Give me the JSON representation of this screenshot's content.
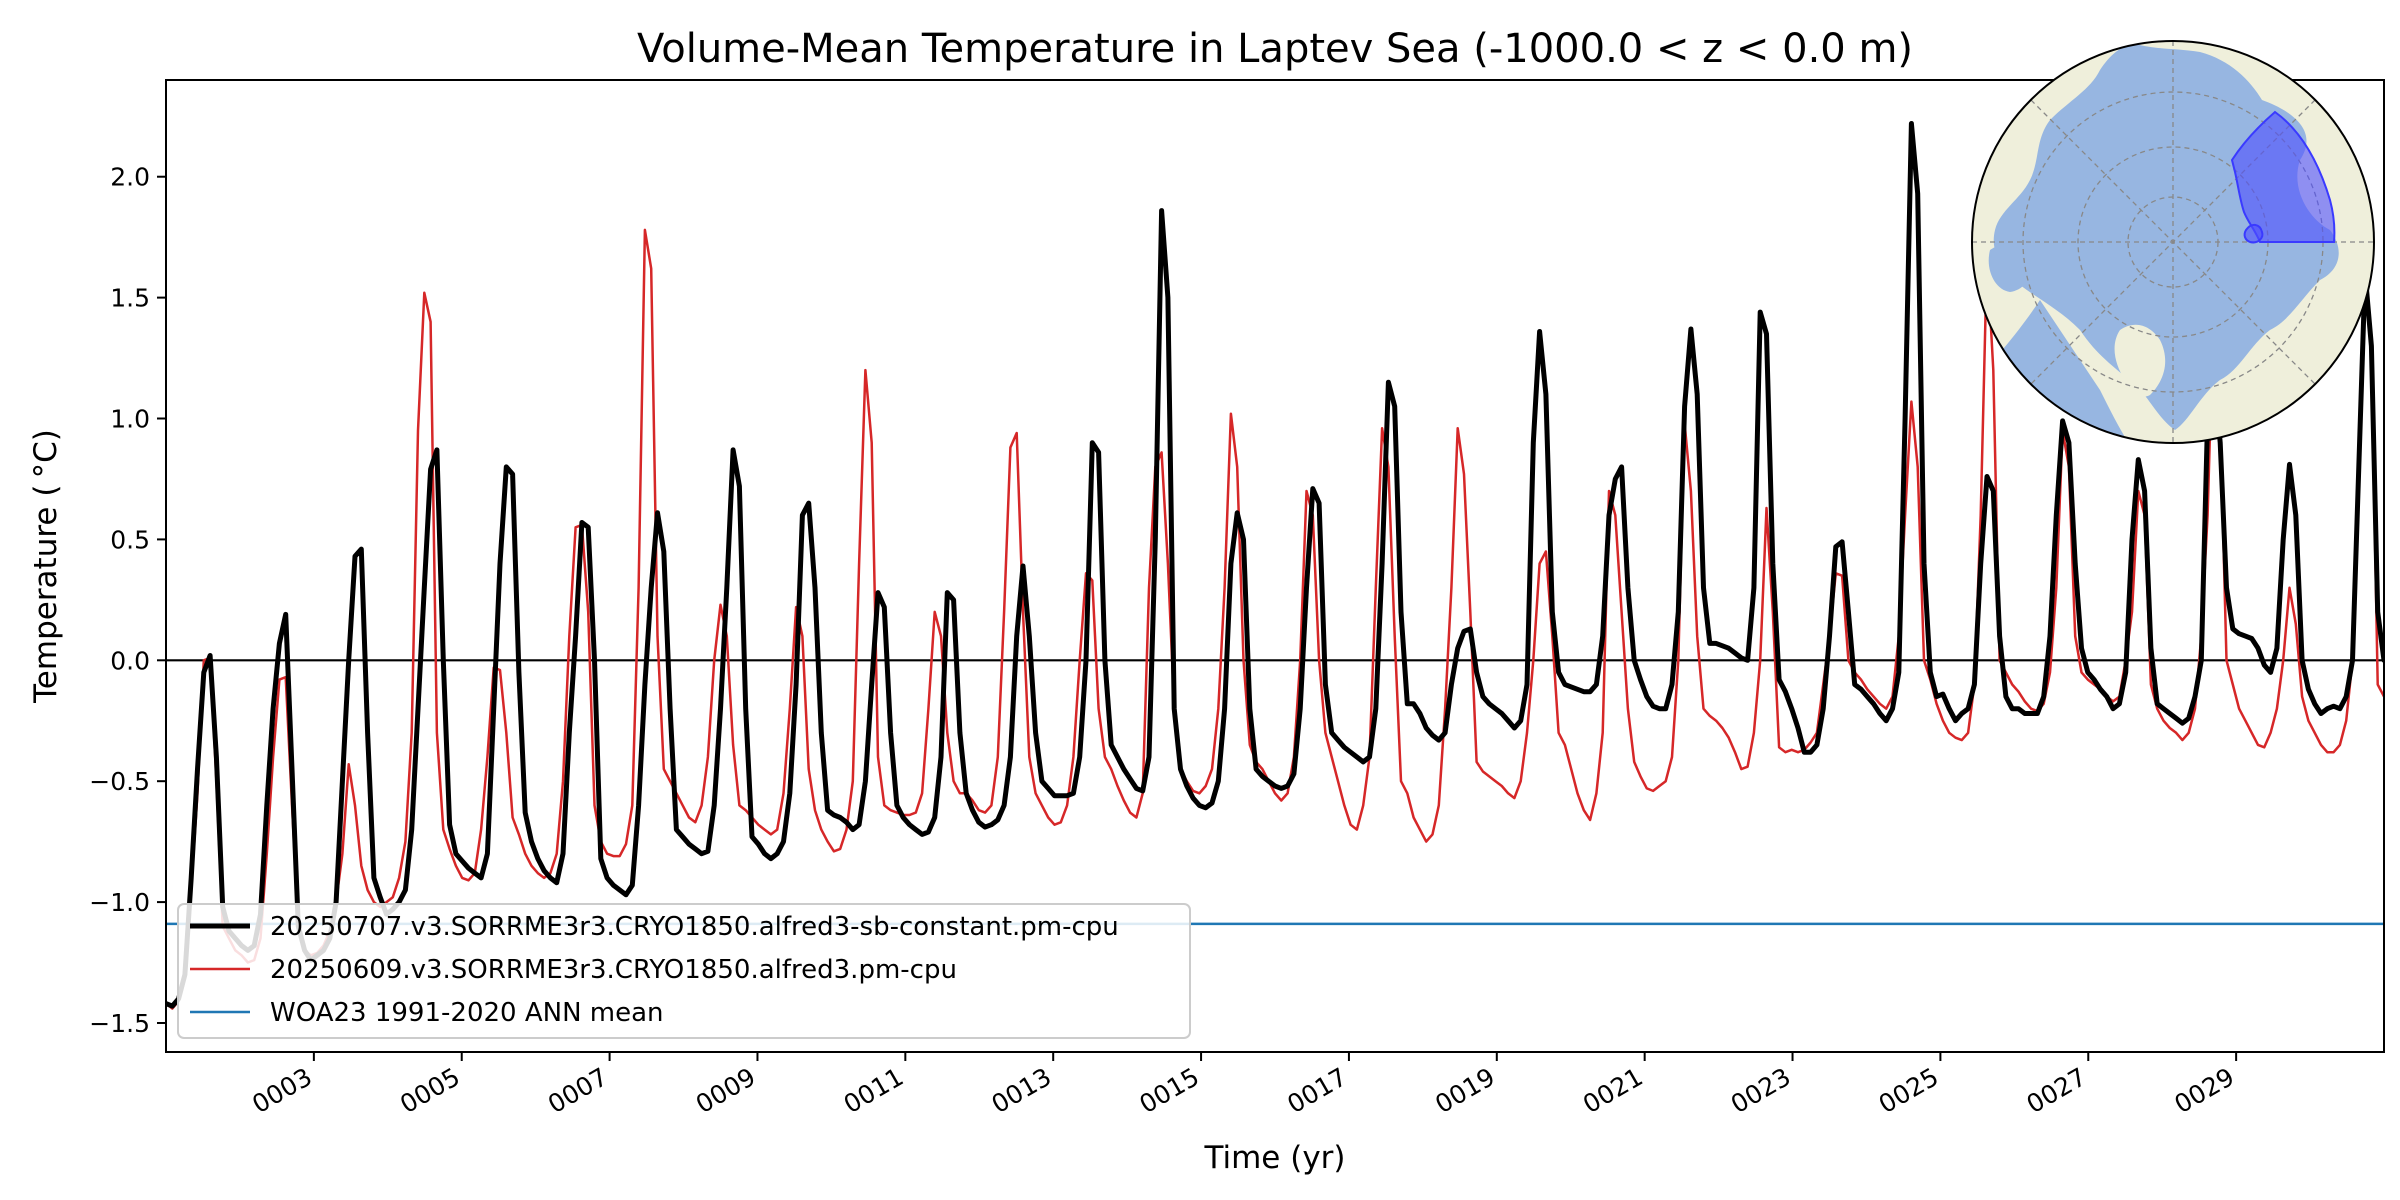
{
  "chart_data": {
    "type": "line",
    "title": "Volume-Mean Temperature in Laptev Sea (-1000.0 < z < 0.0 m)",
    "xlabel": "Time (yr)",
    "ylabel": "Temperature ( °C)",
    "xlim": [
      1.0,
      31.0
    ],
    "ylim": [
      -1.62,
      2.4
    ],
    "yticks": [
      -1.5,
      -1.0,
      -0.5,
      0.0,
      0.5,
      1.0,
      1.5,
      2.0
    ],
    "ytick_labels": [
      "−1.5",
      "−1.0",
      "−0.5",
      "0.0",
      "0.5",
      "1.0",
      "1.5",
      "2.0"
    ],
    "xticks": [
      3,
      5,
      7,
      9,
      11,
      13,
      15,
      17,
      19,
      21,
      23,
      25,
      27,
      29
    ],
    "xtick_labels": [
      "0003",
      "0005",
      "0007",
      "0009",
      "0011",
      "0013",
      "0015",
      "0017",
      "0019",
      "0021",
      "0023",
      "0025",
      "0027",
      "0029"
    ],
    "grid": false,
    "legend_position": "lower-left",
    "zero_line": 0.0,
    "series": [
      {
        "name": "20250707.v3.SORRME3r3.CRYO1850.alfred3-sb-constant.pm-cpu",
        "color": "#000000",
        "style": "thick",
        "y": [
          -1.42,
          -1.43,
          -1.4,
          -1.3,
          -0.9,
          -0.45,
          -0.05,
          0.02,
          -0.4,
          -1.02,
          -1.12,
          -1.15,
          -1.18,
          -1.2,
          -1.18,
          -1.05,
          -0.6,
          -0.2,
          0.07,
          0.19,
          -0.45,
          -1.1,
          -1.2,
          -1.24,
          -1.22,
          -1.2,
          -1.15,
          -1.0,
          -0.5,
          0.0,
          0.43,
          0.46,
          -0.3,
          -0.9,
          -0.98,
          -1.05,
          -1.03,
          -1.0,
          -0.95,
          -0.7,
          -0.2,
          0.3,
          0.79,
          0.87,
          0.0,
          -0.68,
          -0.8,
          -0.83,
          -0.86,
          -0.88,
          -0.9,
          -0.8,
          -0.2,
          0.4,
          0.8,
          0.77,
          -0.05,
          -0.63,
          -0.75,
          -0.82,
          -0.87,
          -0.9,
          -0.92,
          -0.8,
          -0.3,
          0.1,
          0.57,
          0.55,
          0.0,
          -0.82,
          -0.9,
          -0.93,
          -0.95,
          -0.97,
          -0.93,
          -0.6,
          -0.1,
          0.3,
          0.61,
          0.45,
          -0.2,
          -0.7,
          -0.73,
          -0.76,
          -0.78,
          -0.8,
          -0.79,
          -0.6,
          -0.2,
          0.3,
          0.87,
          0.72,
          -0.2,
          -0.73,
          -0.76,
          -0.8,
          -0.82,
          -0.8,
          -0.75,
          -0.55,
          -0.1,
          0.6,
          0.65,
          0.3,
          -0.3,
          -0.62,
          -0.64,
          -0.65,
          -0.67,
          -0.7,
          -0.68,
          -0.5,
          -0.1,
          0.28,
          0.22,
          -0.3,
          -0.6,
          -0.65,
          -0.68,
          -0.7,
          -0.72,
          -0.71,
          -0.65,
          -0.4,
          0.28,
          0.25,
          -0.3,
          -0.55,
          -0.62,
          -0.67,
          -0.69,
          -0.68,
          -0.66,
          -0.6,
          -0.4,
          0.1,
          0.39,
          0.1,
          -0.3,
          -0.5,
          -0.53,
          -0.56,
          -0.56,
          -0.56,
          -0.55,
          -0.4,
          0.0,
          0.9,
          0.86,
          0.0,
          -0.35,
          -0.4,
          -0.45,
          -0.49,
          -0.53,
          -0.54,
          -0.4,
          0.5,
          1.86,
          1.5,
          -0.2,
          -0.45,
          -0.52,
          -0.57,
          -0.6,
          -0.61,
          -0.59,
          -0.5,
          -0.2,
          0.4,
          0.61,
          0.5,
          -0.2,
          -0.45,
          -0.48,
          -0.5,
          -0.52,
          -0.53,
          -0.52,
          -0.47,
          -0.2,
          0.3,
          0.71,
          0.65,
          -0.1,
          -0.3,
          -0.33,
          -0.36,
          -0.38,
          -0.4,
          -0.42,
          -0.4,
          -0.2,
          0.4,
          1.15,
          1.05,
          0.2,
          -0.18,
          -0.18,
          -0.22,
          -0.28,
          -0.31,
          -0.33,
          -0.3,
          -0.1,
          0.05,
          0.12,
          0.13,
          -0.05,
          -0.15,
          -0.18,
          -0.2,
          -0.22,
          -0.25,
          -0.28,
          -0.25,
          -0.1,
          0.9,
          1.36,
          1.1,
          0.2,
          -0.05,
          -0.1,
          -0.11,
          -0.12,
          -0.13,
          -0.13,
          -0.1,
          0.1,
          0.6,
          0.75,
          0.8,
          0.3,
          0.0,
          -0.08,
          -0.15,
          -0.19,
          -0.2,
          -0.2,
          -0.1,
          0.2,
          1.05,
          1.37,
          1.1,
          0.3,
          0.07,
          0.07,
          0.06,
          0.05,
          0.03,
          0.01,
          0.0,
          0.3,
          1.44,
          1.35,
          0.4,
          -0.08,
          -0.13,
          -0.2,
          -0.28,
          -0.38,
          -0.38,
          -0.35,
          -0.2,
          0.1,
          0.47,
          0.49,
          0.2,
          -0.1,
          -0.12,
          -0.15,
          -0.18,
          -0.22,
          -0.25,
          -0.2,
          -0.05,
          1.0,
          2.22,
          1.93,
          0.4,
          -0.05,
          -0.15,
          -0.14,
          -0.2,
          -0.25,
          -0.22,
          -0.2,
          -0.1,
          0.4,
          0.76,
          0.7,
          0.1,
          -0.15,
          -0.2,
          -0.2,
          -0.22,
          -0.22,
          -0.22,
          -0.15,
          0.1,
          0.6,
          0.99,
          0.9,
          0.4,
          0.05,
          -0.05,
          -0.08,
          -0.12,
          -0.15,
          -0.2,
          -0.18,
          -0.05,
          0.5,
          0.83,
          0.7,
          0.05,
          -0.18,
          -0.2,
          -0.22,
          -0.24,
          -0.26,
          -0.24,
          -0.15,
          0.0,
          1.0,
          1.19,
          0.9,
          0.3,
          0.13,
          0.11,
          0.1,
          0.09,
          0.05,
          -0.02,
          -0.05,
          0.05,
          0.5,
          0.81,
          0.6,
          0.0,
          -0.12,
          -0.18,
          -0.22,
          -0.2,
          -0.19,
          -0.2,
          -0.15,
          0.0,
          0.8,
          1.6,
          1.3,
          0.2,
          0.0
        ]
      },
      {
        "name": "20250609.v3.SORRME3r3.CRYO1850.alfred3.pm-cpu",
        "color": "#d62728",
        "style": "thin",
        "y": [
          -1.42,
          -1.44,
          -1.41,
          -1.3,
          -0.95,
          -0.55,
          0.0,
          0.01,
          -0.5,
          -1.1,
          -1.15,
          -1.2,
          -1.22,
          -1.25,
          -1.24,
          -1.15,
          -0.8,
          -0.4,
          -0.08,
          -0.07,
          -0.6,
          -1.1,
          -1.2,
          -1.22,
          -1.21,
          -1.18,
          -1.12,
          -1.0,
          -0.8,
          -0.43,
          -0.6,
          -0.85,
          -0.95,
          -1.0,
          -1.02,
          -1.0,
          -0.98,
          -0.9,
          -0.75,
          -0.3,
          0.95,
          1.52,
          1.4,
          -0.3,
          -0.7,
          -0.78,
          -0.85,
          -0.9,
          -0.91,
          -0.88,
          -0.7,
          -0.4,
          -0.03,
          -0.04,
          -0.3,
          -0.65,
          -0.72,
          -0.8,
          -0.85,
          -0.88,
          -0.9,
          -0.88,
          -0.8,
          -0.5,
          0.1,
          0.55,
          0.56,
          0.2,
          -0.6,
          -0.75,
          -0.8,
          -0.81,
          -0.81,
          -0.76,
          -0.6,
          0.3,
          1.78,
          1.62,
          0.1,
          -0.45,
          -0.5,
          -0.55,
          -0.6,
          -0.65,
          -0.67,
          -0.6,
          -0.4,
          0.0,
          0.23,
          0.1,
          -0.35,
          -0.6,
          -0.62,
          -0.65,
          -0.68,
          -0.7,
          -0.72,
          -0.7,
          -0.55,
          -0.2,
          0.22,
          0.1,
          -0.45,
          -0.62,
          -0.7,
          -0.75,
          -0.79,
          -0.78,
          -0.7,
          -0.5,
          0.4,
          1.2,
          0.9,
          -0.4,
          -0.6,
          -0.62,
          -0.63,
          -0.64,
          -0.64,
          -0.63,
          -0.55,
          -0.2,
          0.2,
          0.1,
          -0.3,
          -0.5,
          -0.55,
          -0.55,
          -0.58,
          -0.62,
          -0.63,
          -0.6,
          -0.4,
          0.2,
          0.88,
          0.94,
          0.2,
          -0.4,
          -0.55,
          -0.6,
          -0.65,
          -0.68,
          -0.67,
          -0.6,
          -0.4,
          0.0,
          0.36,
          0.33,
          -0.2,
          -0.4,
          -0.45,
          -0.52,
          -0.58,
          -0.63,
          -0.65,
          -0.55,
          0.3,
          0.8,
          0.86,
          0.4,
          -0.2,
          -0.45,
          -0.5,
          -0.54,
          -0.55,
          -0.52,
          -0.45,
          -0.2,
          0.3,
          1.02,
          0.8,
          0.0,
          -0.35,
          -0.42,
          -0.45,
          -0.5,
          -0.55,
          -0.58,
          -0.55,
          -0.4,
          0.0,
          0.7,
          0.6,
          0.0,
          -0.3,
          -0.4,
          -0.5,
          -0.6,
          -0.68,
          -0.7,
          -0.6,
          -0.4,
          0.3,
          0.96,
          0.8,
          0.1,
          -0.5,
          -0.55,
          -0.65,
          -0.7,
          -0.75,
          -0.72,
          -0.6,
          -0.2,
          0.3,
          0.96,
          0.77,
          0.2,
          -0.42,
          -0.46,
          -0.48,
          -0.5,
          -0.52,
          -0.55,
          -0.57,
          -0.5,
          -0.3,
          0.0,
          0.4,
          0.45,
          0.1,
          -0.3,
          -0.35,
          -0.45,
          -0.55,
          -0.62,
          -0.66,
          -0.55,
          -0.3,
          0.7,
          0.6,
          0.2,
          -0.2,
          -0.42,
          -0.48,
          -0.53,
          -0.54,
          -0.52,
          -0.5,
          -0.4,
          0.0,
          0.98,
          0.7,
          0.1,
          -0.2,
          -0.23,
          -0.25,
          -0.28,
          -0.32,
          -0.38,
          -0.45,
          -0.44,
          -0.3,
          0.0,
          0.63,
          0.2,
          -0.36,
          -0.38,
          -0.37,
          -0.38,
          -0.37,
          -0.34,
          -0.3,
          -0.1,
          0.1,
          0.36,
          0.35,
          0.0,
          -0.05,
          -0.08,
          -0.12,
          -0.15,
          -0.18,
          -0.2,
          -0.15,
          0.1,
          0.6,
          1.07,
          0.8,
          0.0,
          -0.08,
          -0.18,
          -0.25,
          -0.3,
          -0.32,
          -0.33,
          -0.3,
          -0.1,
          0.6,
          1.68,
          1.2,
          0.0,
          -0.05,
          -0.1,
          -0.13,
          -0.17,
          -0.2,
          -0.21,
          -0.18,
          -0.05,
          0.3,
          0.95,
          0.8,
          0.1,
          -0.05,
          -0.08,
          -0.1,
          -0.12,
          -0.15,
          -0.17,
          -0.15,
          0.0,
          0.2,
          0.7,
          0.6,
          -0.1,
          -0.2,
          -0.25,
          -0.28,
          -0.3,
          -0.33,
          -0.3,
          -0.2,
          0.1,
          0.6,
          1.5,
          1.0,
          0.0,
          -0.1,
          -0.2,
          -0.25,
          -0.3,
          -0.35,
          -0.36,
          -0.3,
          -0.2,
          0.0,
          0.3,
          0.15,
          -0.15,
          -0.25,
          -0.3,
          -0.35,
          -0.38,
          -0.38,
          -0.35,
          -0.25,
          0.0,
          0.8,
          1.62,
          1.3,
          -0.1,
          -0.15
        ]
      },
      {
        "name": "WOA23 1991-2020 ANN mean",
        "color": "#1f77b4",
        "style": "constant",
        "y": [
          -1.09,
          -1.09
        ]
      }
    ]
  },
  "inset_map": {
    "projection": "north-polar-stereographic",
    "ocean_color": "#97b6e1",
    "land_color": "#efefdb",
    "region_color": "#4f4fff"
  }
}
